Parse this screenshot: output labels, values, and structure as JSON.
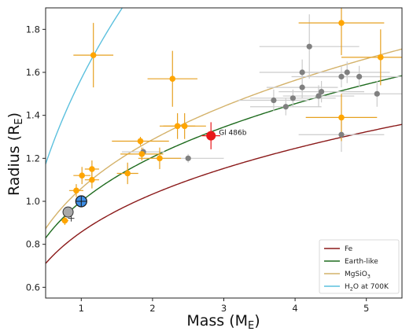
{
  "chart_data": {
    "type": "scatter",
    "xlabel": "Mass (M",
    "xlabel_sub": "E",
    "xlabel_close": ")",
    "ylabel": "Radius (R",
    "ylabel_sub": "E",
    "ylabel_close": ")",
    "xlim": [
      0.5,
      5.5
    ],
    "ylim": [
      0.55,
      1.9
    ],
    "xticks": [
      1,
      2,
      3,
      4,
      5
    ],
    "yticks": [
      0.6,
      0.8,
      1.0,
      1.2,
      1.4,
      1.6,
      1.8
    ],
    "ytick_labels": [
      "0.6",
      "0.8",
      "1.0",
      "1.2",
      "1.4",
      "1.6",
      "1.8"
    ],
    "grid": false,
    "legend_position": "bottom-right",
    "curves": [
      {
        "name": "Fe",
        "color": "#8b1a1a",
        "label": "Fe",
        "k": 0.857,
        "p": 0.27
      },
      {
        "name": "Earth-like",
        "color": "#1e6b1e",
        "label": "Earth-like",
        "k": 1.0,
        "p": 0.27
      },
      {
        "name": "MgSiO3",
        "color": "#d4b26a",
        "label": "MgSiO",
        "label_sub": "3",
        "k": 1.06,
        "p": 0.28
      },
      {
        "name": "H2O at 700K",
        "color": "#5bc0de",
        "label": "H",
        "label_sub": "2",
        "label_rest": "O at 700K",
        "k": 1.57,
        "p": 0.42
      }
    ],
    "gray_points": [
      {
        "x": 1.87,
        "y": 1.23,
        "xerr": 0.3,
        "yerr": 0.02
      },
      {
        "x": 2.5,
        "y": 1.2,
        "xerr": 0.5,
        "yerr": 0.02
      },
      {
        "x": 3.7,
        "y": 1.47,
        "xerr": 0.5,
        "yerr": 0.05
      },
      {
        "x": 3.87,
        "y": 1.44,
        "xerr": 0.5,
        "yerr": 0.04
      },
      {
        "x": 3.97,
        "y": 1.48,
        "xerr": 0.6,
        "yerr": 0.04
      },
      {
        "x": 4.1,
        "y": 1.6,
        "xerr": 0.6,
        "yerr": 0.06
      },
      {
        "x": 4.2,
        "y": 1.72,
        "xerr": 0.7,
        "yerr": 0.15
      },
      {
        "x": 4.1,
        "y": 1.53,
        "xerr": 0.5,
        "yerr": 0.05
      },
      {
        "x": 4.33,
        "y": 1.49,
        "xerr": 0.5,
        "yerr": 0.05
      },
      {
        "x": 4.37,
        "y": 1.51,
        "xerr": 0.6,
        "yerr": 0.05
      },
      {
        "x": 4.65,
        "y": 1.58,
        "xerr": 0.7,
        "yerr": 0.05
      },
      {
        "x": 4.73,
        "y": 1.6,
        "xerr": 0.6,
        "yerr": 0.05
      },
      {
        "x": 4.9,
        "y": 1.58,
        "xerr": 0.6,
        "yerr": 0.05
      },
      {
        "x": 4.65,
        "y": 1.31,
        "xerr": 0.6,
        "yerr": 0.08
      },
      {
        "x": 5.15,
        "y": 1.5,
        "xerr": 0.5,
        "yerr": 0.06
      }
    ],
    "orange_points": [
      {
        "x": 0.77,
        "y": 0.91,
        "xerr": 0.05,
        "yerr": 0.02
      },
      {
        "x": 0.93,
        "y": 1.05,
        "xerr": 0.1,
        "yerr": 0.03
      },
      {
        "x": 1.01,
        "y": 1.12,
        "xerr": 0.12,
        "yerr": 0.04
      },
      {
        "x": 1.15,
        "y": 1.15,
        "xerr": 0.1,
        "yerr": 0.04
      },
      {
        "x": 1.15,
        "y": 1.1,
        "xerr": 0.1,
        "yerr": 0.04
      },
      {
        "x": 1.17,
        "y": 1.68,
        "xerr": 0.28,
        "yerr": 0.15
      },
      {
        "x": 1.65,
        "y": 1.13,
        "xerr": 0.15,
        "yerr": 0.05
      },
      {
        "x": 1.83,
        "y": 1.28,
        "xerr": 0.4,
        "yerr": 0.02
      },
      {
        "x": 1.85,
        "y": 1.22,
        "xerr": 0.3,
        "yerr": 0.03
      },
      {
        "x": 2.1,
        "y": 1.2,
        "xerr": 0.3,
        "yerr": 0.05
      },
      {
        "x": 2.28,
        "y": 1.57,
        "xerr": 0.35,
        "yerr": 0.13
      },
      {
        "x": 2.35,
        "y": 1.35,
        "xerr": 0.25,
        "yerr": 0.06
      },
      {
        "x": 2.45,
        "y": 1.35,
        "xerr": 0.3,
        "yerr": 0.06
      },
      {
        "x": 4.65,
        "y": 1.83,
        "xerr": 0.6,
        "yerr": 0.15
      },
      {
        "x": 4.65,
        "y": 1.39,
        "xerr": 0.5,
        "yerr": 0.11
      },
      {
        "x": 5.2,
        "y": 1.67,
        "xerr": 0.55,
        "yerr": 0.13
      }
    ],
    "highlight_point": {
      "name": "Gl 486b",
      "label": "Gl 486b",
      "x": 2.82,
      "y": 1.305,
      "xerr": 0.13,
      "yerr": 0.063,
      "color": "#e8181a"
    },
    "earth": {
      "x": 1.0,
      "y": 1.0,
      "color": "#3d8ee6"
    },
    "venus": {
      "x": 0.815,
      "y": 0.95,
      "color": "#a8a8a8"
    },
    "colors": {
      "gray": "#808080",
      "gray_err": "#cccccc",
      "orange": "#ffa500",
      "orange_err": "#e6a020"
    }
  }
}
